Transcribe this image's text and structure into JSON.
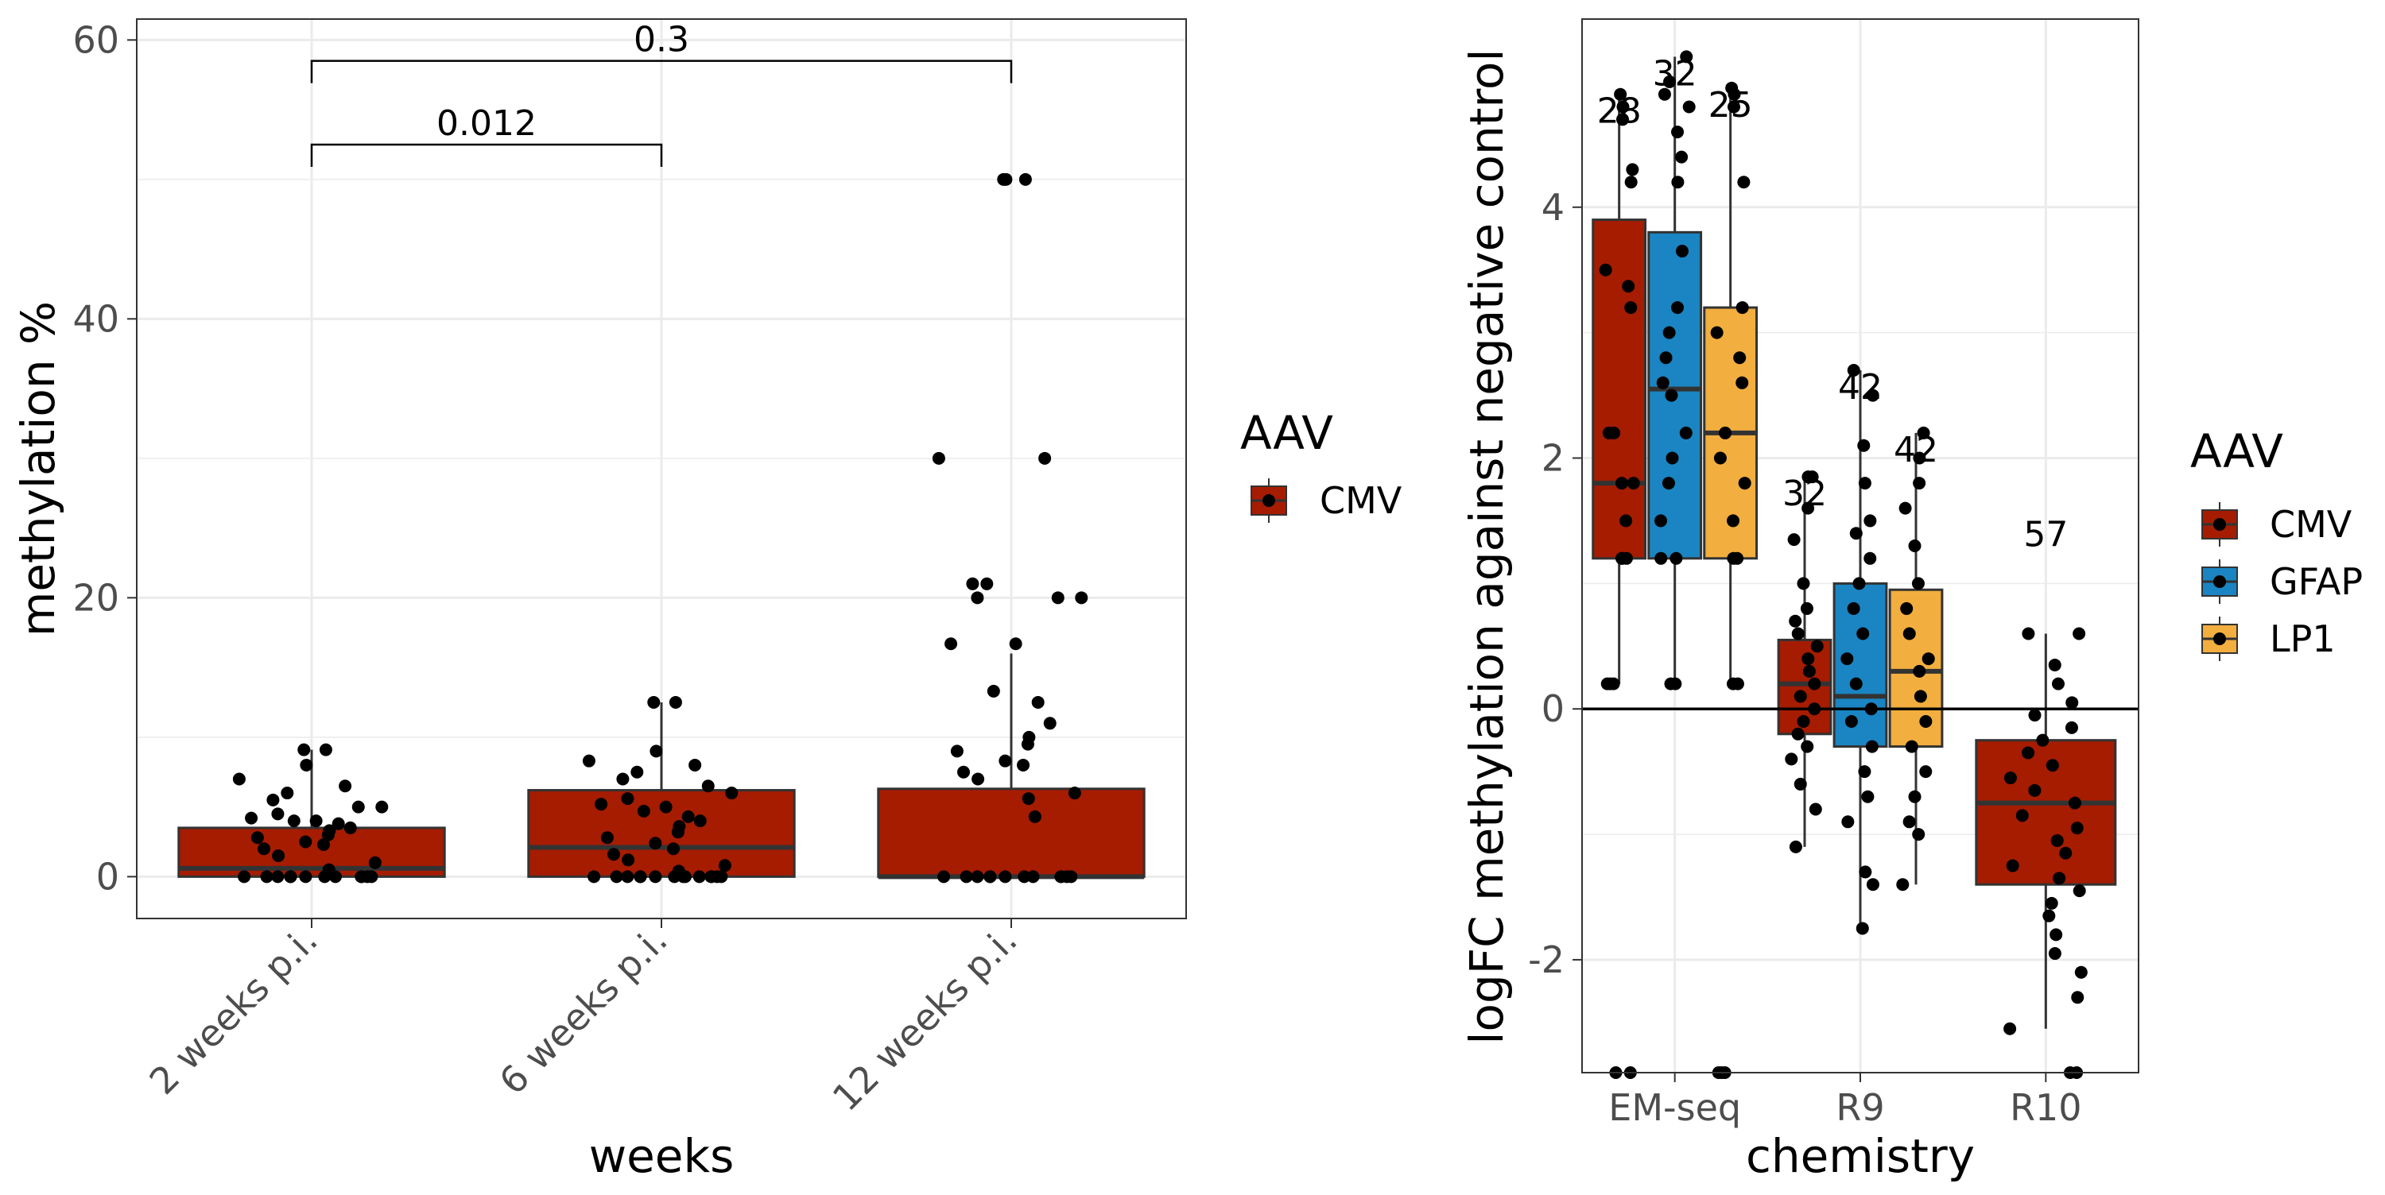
{
  "colors": {
    "CMV": "#A51C00",
    "GFAP": "#1A85C2",
    "LP1": "#F2AE3E",
    "grid": "#EBEBEB",
    "axis_text": "#4D4D4D",
    "points": "#000000"
  },
  "chart_data": [
    {
      "type": "box",
      "xlabel": "weeks",
      "ylabel": "methylation %",
      "ylim": [
        -3,
        61.5
      ],
      "yticks": [
        0,
        20,
        40,
        60
      ],
      "categories": [
        "2 weeks p.i.",
        "6 weeks p.i.",
        "12 weeks p.i."
      ],
      "legend": {
        "title": "AAV",
        "entries": [
          "CMV"
        ],
        "placement": "right"
      },
      "grid": true,
      "series": [
        {
          "name": "CMV",
          "color_key": "CMV",
          "boxes": [
            {
              "category": "2 weeks p.i.",
              "min": 0,
              "q1": 0,
              "median": 0.6,
              "q3": 3.5,
              "max": 9.1,
              "points": [
                9.1,
                9.1,
                8.0,
                7.0,
                6.5,
                6.0,
                5.5,
                5.0,
                5.0,
                4.5,
                4.2,
                4.0,
                4.0,
                3.8,
                3.5,
                3.3,
                3.0,
                2.8,
                2.5,
                2.3,
                2.0,
                1.5,
                1.0,
                0.5,
                0,
                0,
                0,
                0,
                0,
                0,
                0,
                0,
                0,
                0,
                0,
                0
              ]
            },
            {
              "category": "6 weeks p.i.",
              "min": 0,
              "q1": 0,
              "median": 2.1,
              "q3": 6.2,
              "max": 12.5,
              "points": [
                12.5,
                12.5,
                9.0,
                8.3,
                8.0,
                7.5,
                7.0,
                6.5,
                6.0,
                5.6,
                5.2,
                5.0,
                4.7,
                4.3,
                4.0,
                3.6,
                3.2,
                2.8,
                2.4,
                2.0,
                1.6,
                1.2,
                0.8,
                0.4,
                0,
                0,
                0,
                0,
                0,
                0,
                0,
                0,
                0,
                0,
                0,
                0,
                0,
                0
              ]
            },
            {
              "category": "12 weeks p.i.",
              "min": 0,
              "q1": 0,
              "median": 0,
              "q3": 6.3,
              "max": 16.0,
              "points": [
                50,
                50,
                50,
                30,
                30,
                21,
                21,
                20,
                20,
                20,
                16.7,
                16.7,
                13.3,
                12.5,
                11.0,
                10.0,
                9.5,
                9.0,
                8.3,
                8.0,
                7.5,
                7.0,
                6.0,
                5.6,
                4.3,
                0,
                0,
                0,
                0,
                0,
                0,
                0,
                0,
                0,
                0,
                0,
                0
              ]
            }
          ]
        }
      ],
      "annotations": [
        {
          "from": "2 weeks p.i.",
          "to": "6 weeks p.i.",
          "label": "0.012",
          "y": 52.5
        },
        {
          "from": "2 weeks p.i.",
          "to": "12 weeks p.i.",
          "label": "0.3",
          "y": 58.5
        }
      ]
    },
    {
      "type": "box",
      "xlabel": "chemistry",
      "ylabel": "logFC methylation against negative control",
      "ylim": [
        -2.9,
        5.5
      ],
      "yticks": [
        -2,
        0,
        2,
        4
      ],
      "categories": [
        "EM-seq",
        "R9",
        "R10"
      ],
      "hline": 0,
      "legend": {
        "title": "AAV",
        "entries": [
          "CMV",
          "GFAP",
          "LP1"
        ],
        "placement": "right"
      },
      "grid": true,
      "groups": [
        {
          "category": "EM-seq",
          "boxes": [
            {
              "name": "CMV",
              "count_label": "28",
              "min": 0.2,
              "q1": 1.2,
              "median": 1.8,
              "q3": 3.9,
              "max": 4.9,
              "points": [
                4.9,
                4.8,
                4.7,
                4.3,
                4.2,
                3.5,
                3.37,
                3.2,
                2.2,
                2.2,
                1.8,
                1.8,
                1.5,
                1.2,
                1.2,
                1.2,
                0.2,
                0.2,
                0.2,
                -2.9,
                -2.9
              ]
            },
            {
              "name": "GFAP",
              "count_label": "32",
              "min": 0.2,
              "q1": 1.2,
              "median": 2.55,
              "q3": 3.8,
              "max": 5.2,
              "points": [
                5.2,
                5.0,
                4.9,
                4.8,
                4.6,
                4.4,
                4.2,
                3.65,
                3.2,
                3.0,
                2.8,
                2.6,
                2.5,
                2.2,
                2.0,
                1.8,
                1.5,
                1.2,
                1.2,
                0.2,
                0.2
              ]
            },
            {
              "name": "LP1",
              "count_label": "25",
              "min": 0.2,
              "q1": 1.2,
              "median": 2.2,
              "q3": 3.2,
              "max": 4.95,
              "points": [
                4.95,
                4.9,
                4.8,
                4.2,
                3.2,
                3.0,
                2.8,
                2.6,
                2.2,
                2.0,
                1.8,
                1.5,
                1.2,
                1.2,
                0.2,
                0.2,
                -2.9,
                -2.9,
                -2.9
              ]
            }
          ]
        },
        {
          "category": "R9",
          "boxes": [
            {
              "name": "CMV",
              "count_label": "32",
              "min": -1.1,
              "q1": -0.2,
              "median": 0.2,
              "q3": 0.55,
              "max": 1.85,
              "points": [
                1.85,
                1.85,
                1.6,
                1.35,
                1.0,
                0.8,
                0.7,
                0.6,
                0.5,
                0.4,
                0.3,
                0.2,
                0.1,
                0.0,
                -0.1,
                -0.2,
                -0.3,
                -0.4,
                -0.6,
                -0.8,
                -1.1
              ]
            },
            {
              "name": "GFAP",
              "count_label": "42",
              "min": -1.75,
              "q1": -0.3,
              "median": 0.1,
              "q3": 1.0,
              "max": 2.7,
              "points": [
                2.7,
                2.5,
                2.1,
                1.8,
                1.5,
                1.4,
                1.2,
                1.0,
                0.8,
                0.6,
                0.4,
                0.2,
                0.0,
                -0.1,
                -0.3,
                -0.5,
                -0.7,
                -0.9,
                -1.3,
                -1.4,
                -1.75
              ]
            },
            {
              "name": "LP1",
              "count_label": "42",
              "min": -1.4,
              "q1": -0.3,
              "median": 0.3,
              "q3": 0.95,
              "max": 2.2,
              "points": [
                2.2,
                2.0,
                1.8,
                1.6,
                1.3,
                1.0,
                0.8,
                0.6,
                0.4,
                0.3,
                0.1,
                -0.1,
                -0.3,
                -0.5,
                -0.7,
                -0.9,
                -1.0,
                -1.4
              ]
            }
          ]
        },
        {
          "category": "R10",
          "boxes": [
            {
              "name": "CMV",
              "count_label": "57",
              "min": -2.55,
              "q1": -1.4,
              "median": -0.75,
              "q3": -0.25,
              "max": 0.6,
              "points": [
                0.6,
                0.6,
                0.35,
                0.2,
                0.05,
                -0.05,
                -0.15,
                -0.25,
                -0.35,
                -0.45,
                -0.55,
                -0.65,
                -0.75,
                -0.85,
                -0.95,
                -1.05,
                -1.15,
                -1.25,
                -1.35,
                -1.45,
                -1.55,
                -1.65,
                -1.8,
                -1.95,
                -2.1,
                -2.3,
                -2.55,
                -2.9,
                -2.9
              ]
            }
          ]
        }
      ]
    }
  ]
}
